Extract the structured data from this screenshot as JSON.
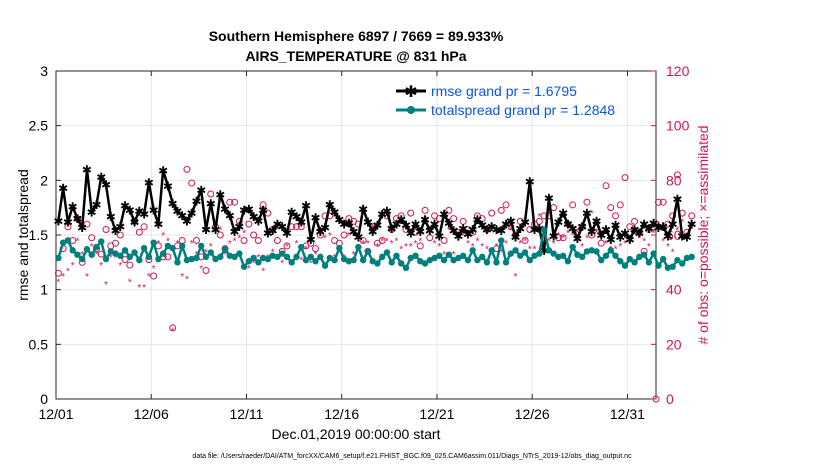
{
  "chart_data": {
    "type": "line",
    "title": "Southern Hemisphere 6897 / 7669 = 89.933%",
    "subtitle": "AIRS_TEMPERATURE @ 831 hPa",
    "xlabel": "Dec.01,2019 00:00:00 start",
    "ylabel": "rmse and totalspread",
    "ylabel_right": "# of obs: o=possible; ×=assimilated",
    "xlim": [
      0,
      31.5
    ],
    "ylim": [
      0,
      3
    ],
    "ylim_right": [
      0,
      120
    ],
    "x_ticks": [
      0,
      5,
      10,
      15,
      20,
      25,
      30
    ],
    "x_ticklabels": [
      "12/01",
      "12/06",
      "12/11",
      "12/16",
      "12/21",
      "12/26",
      "12/31"
    ],
    "y_ticks": [
      "0",
      "0.5",
      "1",
      "1.5",
      "2",
      "2.5",
      "3"
    ],
    "y_ticks_right": [
      "0",
      "20",
      "40",
      "60",
      "80",
      "100",
      "120"
    ],
    "step_days": 0.25,
    "series": [
      {
        "name": "rmse grand pr = 1.6795",
        "color": "#000000",
        "marker": "asterisk",
        "values": [
          1.63,
          1.93,
          1.62,
          1.76,
          1.65,
          1.57,
          2.1,
          1.71,
          1.78,
          2.03,
          1.96,
          1.67,
          1.54,
          1.58,
          1.77,
          1.73,
          1.62,
          1.72,
          1.69,
          1.98,
          1.73,
          1.6,
          2.09,
          1.95,
          1.79,
          1.72,
          1.68,
          1.63,
          1.7,
          1.81,
          1.91,
          1.55,
          1.79,
          1.55,
          1.87,
          1.74,
          1.68,
          1.53,
          1.58,
          1.73,
          1.74,
          1.67,
          1.63,
          1.73,
          1.52,
          1.54,
          1.6,
          1.58,
          1.52,
          1.71,
          1.67,
          1.62,
          1.77,
          1.46,
          1.66,
          1.53,
          1.57,
          1.78,
          1.71,
          1.64,
          1.6,
          1.61,
          1.53,
          1.48,
          1.74,
          1.62,
          1.53,
          1.59,
          1.69,
          1.72,
          1.56,
          1.6,
          1.64,
          1.59,
          1.52,
          1.6,
          1.53,
          1.64,
          1.54,
          1.6,
          1.49,
          1.69,
          1.61,
          1.54,
          1.49,
          1.56,
          1.51,
          1.55,
          1.64,
          1.59,
          1.55,
          1.58,
          1.55,
          1.54,
          1.6,
          1.63,
          1.48,
          1.56,
          1.62,
          1.99,
          1.55,
          1.56,
          1.36,
          1.84,
          1.49,
          1.62,
          1.7,
          1.6,
          1.56,
          1.47,
          1.58,
          1.7,
          1.53,
          1.63,
          1.5,
          1.55,
          1.46,
          1.59,
          1.48,
          1.52,
          1.46,
          1.55,
          1.52,
          1.6,
          1.56,
          1.61,
          1.57,
          1.58,
          1.49,
          1.6,
          1.83,
          1.49,
          1.48,
          1.6
        ]
      },
      {
        "name": "totalspread grand pr = 1.2848",
        "color": "#007f7f",
        "marker": "dot",
        "values": [
          1.29,
          1.43,
          1.45,
          1.36,
          1.32,
          1.28,
          1.37,
          1.32,
          1.39,
          1.44,
          1.28,
          1.35,
          1.33,
          1.31,
          1.36,
          1.3,
          1.34,
          1.27,
          1.38,
          1.3,
          1.43,
          1.28,
          1.33,
          1.4,
          1.38,
          1.25,
          1.4,
          1.27,
          1.28,
          1.29,
          1.4,
          1.3,
          1.34,
          1.28,
          1.3,
          1.37,
          1.31,
          1.3,
          1.33,
          1.21,
          1.26,
          1.29,
          1.25,
          1.29,
          1.28,
          1.31,
          1.3,
          1.33,
          1.3,
          1.25,
          1.3,
          1.39,
          1.27,
          1.3,
          1.26,
          1.3,
          1.22,
          1.29,
          1.27,
          1.38,
          1.28,
          1.26,
          1.27,
          1.39,
          1.27,
          1.35,
          1.26,
          1.24,
          1.3,
          1.34,
          1.25,
          1.31,
          1.24,
          1.2,
          1.29,
          1.31,
          1.26,
          1.24,
          1.27,
          1.29,
          1.31,
          1.27,
          1.32,
          1.27,
          1.29,
          1.31,
          1.27,
          1.36,
          1.27,
          1.3,
          1.25,
          1.36,
          1.25,
          1.45,
          1.25,
          1.33,
          1.36,
          1.31,
          1.34,
          1.27,
          1.31,
          1.33,
          1.55,
          1.36,
          1.33,
          1.3,
          1.31,
          1.26,
          1.39,
          1.32,
          1.3,
          1.35,
          1.36,
          1.35,
          1.27,
          1.31,
          1.36,
          1.31,
          1.26,
          1.22,
          1.28,
          1.25,
          1.3,
          1.32,
          1.25,
          1.33,
          1.22,
          1.28,
          1.2,
          1.21,
          1.27,
          1.24,
          1.29,
          1.3
        ]
      },
      {
        "name": "possible",
        "axis": "right",
        "color": "#d4145a",
        "marker": "circle",
        "values": [
          46,
          55,
          63,
          58,
          66,
          50,
          64,
          59,
          55,
          53,
          62,
          56,
          57,
          60,
          51,
          49,
          65,
          61,
          63,
          51,
          45,
          56,
          52,
          52,
          26,
          56,
          58,
          84,
          79,
          58,
          52,
          47,
          75,
          63,
          60,
          55,
          72,
          72,
          65,
          58,
          64,
          60,
          58,
          71,
          68,
          62,
          58,
          54,
          56,
          63,
          63,
          63,
          56,
          57,
          55,
          60,
          67,
          67,
          58,
          57,
          60,
          66,
          65,
          64,
          58,
          54,
          63,
          57,
          58,
          67,
          62,
          66,
          67,
          62,
          68,
          61,
          56,
          69,
          59,
          67,
          66,
          58,
          69,
          66,
          61,
          65,
          62,
          61,
          67,
          66,
          62,
          68,
          55,
          69,
          71,
          63,
          60,
          65,
          58,
          62,
          64,
          65,
          67,
          67,
          70,
          59,
          59,
          64,
          71,
          61,
          63,
          72,
          60,
          63,
          57,
          78,
          70,
          67,
          71,
          81,
          63,
          65,
          61,
          54,
          62,
          63,
          72,
          72,
          64,
          67,
          82,
          68,
          61,
          67
        ]
      },
      {
        "name": "assimilated",
        "axis": "right",
        "color": "#d4145a",
        "marker": "asterisk",
        "values": [
          43,
          45,
          47,
          49,
          58,
          53,
          45,
          56,
          53,
          49,
          42,
          52,
          52,
          49,
          54,
          43,
          53,
          41,
          41,
          45,
          48,
          57,
          60,
          58,
          25,
          57,
          45,
          44,
          57,
          53,
          48,
          54,
          56,
          51,
          62,
          53,
          57,
          58,
          59,
          61,
          48,
          50,
          52,
          47,
          52,
          54,
          52,
          50,
          56,
          50,
          57,
          51,
          55,
          50,
          53,
          62,
          59,
          60,
          52,
          55,
          52,
          60,
          53,
          55,
          57,
          57,
          63,
          56,
          58,
          58,
          57,
          58,
          55,
          56,
          56,
          57,
          58,
          66,
          51,
          57,
          56,
          53,
          62,
          53,
          58,
          60,
          57,
          56,
          58,
          56,
          55,
          53,
          56,
          54,
          57,
          62,
          45,
          57,
          58,
          55,
          55,
          67,
          55,
          58,
          57,
          60,
          59,
          61,
          60,
          61,
          56,
          59,
          68,
          61,
          59,
          57,
          55,
          55,
          56,
          57,
          58,
          62,
          59,
          58,
          56,
          61,
          64,
          58,
          56,
          54,
          62,
          65,
          59,
          63
        ]
      }
    ]
  }
}
